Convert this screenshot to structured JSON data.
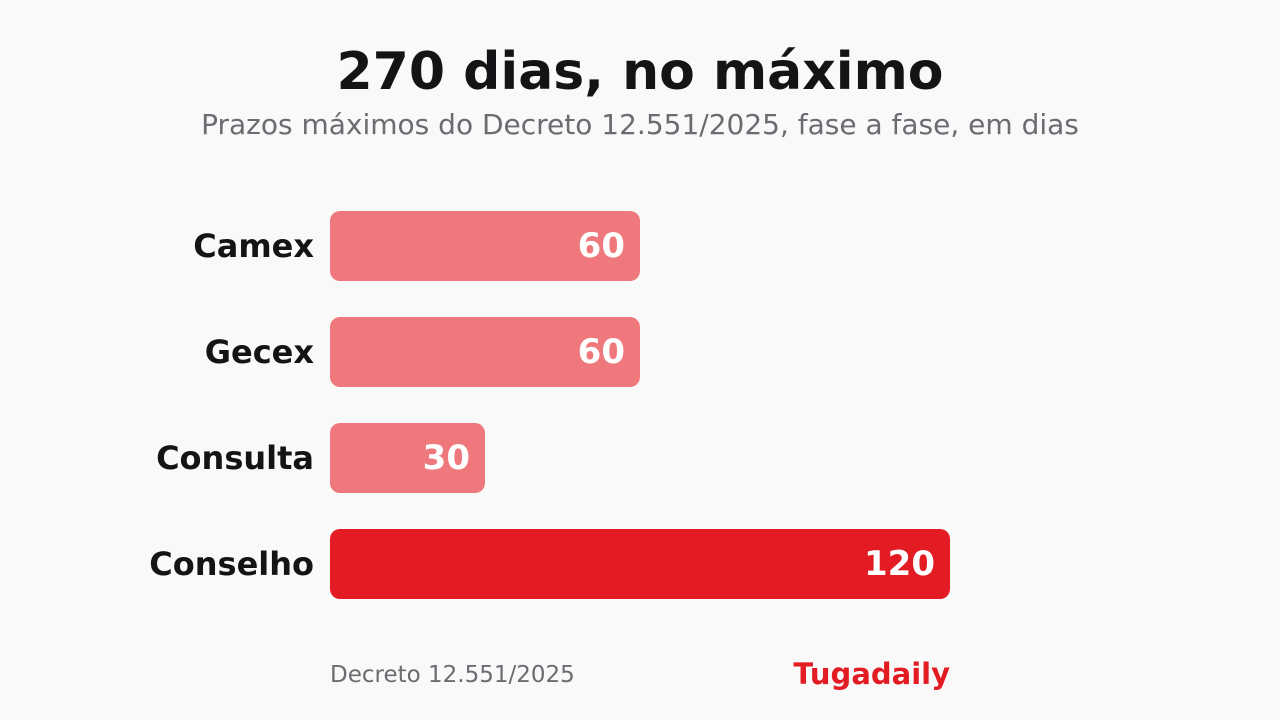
{
  "chart_data": {
    "type": "bar",
    "orientation": "horizontal",
    "title": "270 dias, no máximo",
    "subtitle": "Prazos máximos do Decreto 12.551/2025, fase a fase, em dias",
    "categories": [
      "Camex",
      "Gecex",
      "Consulta",
      "Conselho"
    ],
    "values": [
      60,
      60,
      30,
      120
    ],
    "colors": [
      "#ee787c",
      "#ee787c",
      "#ee787c",
      "#e31b23"
    ],
    "label_inside_color": "#ffffff",
    "label_outside_color": "#141417",
    "xlim": [
      0,
      120
    ],
    "grid": false
  },
  "footer": {
    "source": "Decreto 12.551/2025",
    "brand": "Tugadaily"
  }
}
